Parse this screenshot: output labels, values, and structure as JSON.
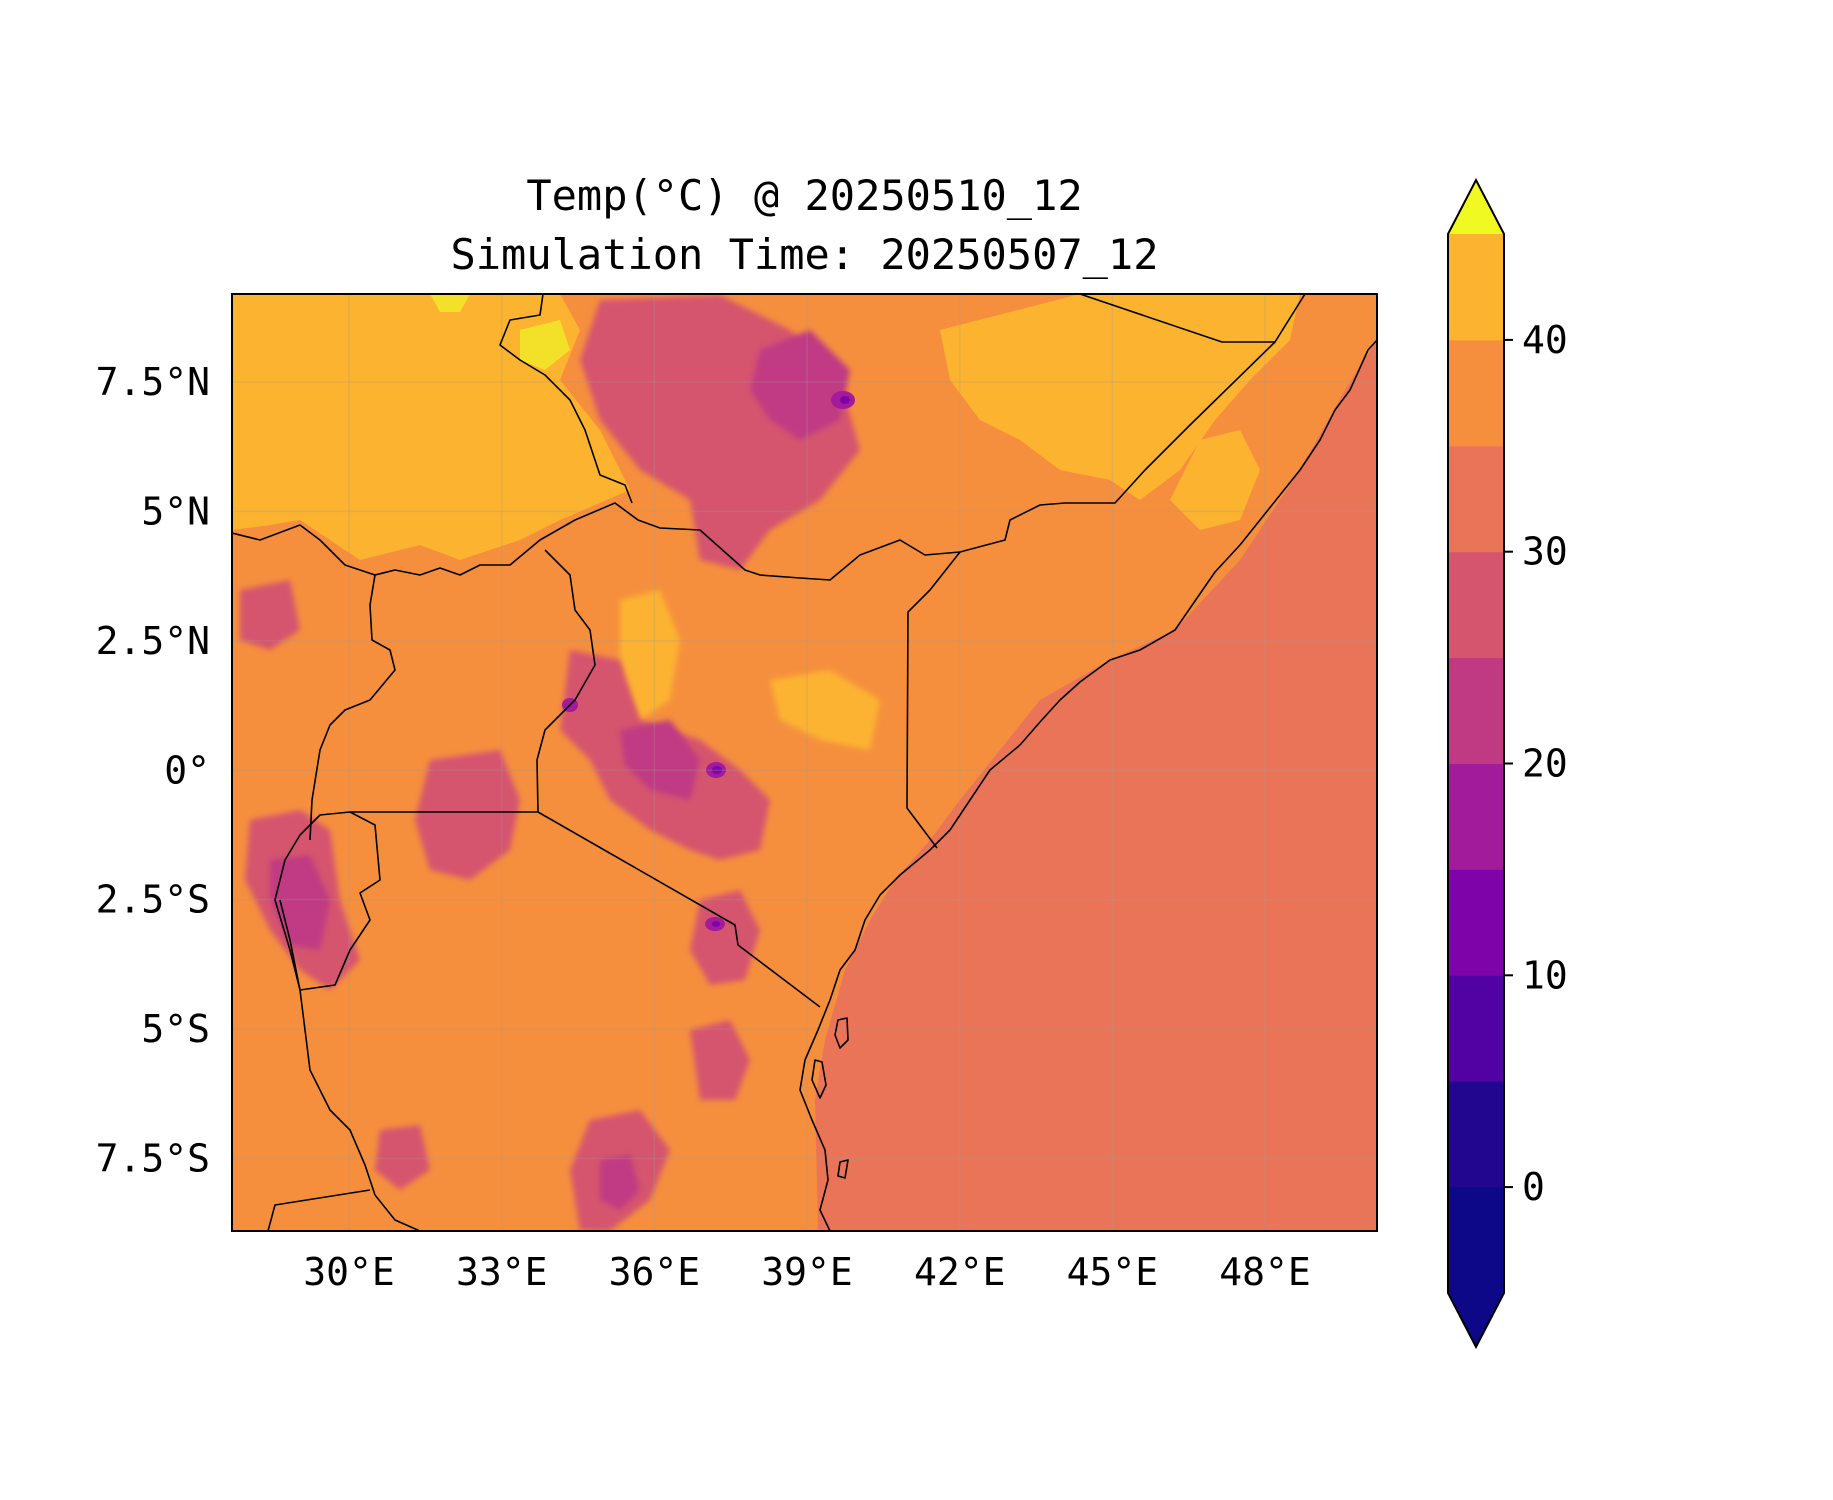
{
  "title_line1": "Temp(°C) @ 20250510_12",
  "title_line2": "Simulation Time: 20250507_12",
  "map": {
    "variable": "Temperature",
    "units": "°C",
    "lon_range": [
      27.7,
      50.2
    ],
    "lat_range": [
      -8.9,
      9.2
    ],
    "x_ticks": [
      {
        "value": 30,
        "label": "30°E"
      },
      {
        "value": 33,
        "label": "33°E"
      },
      {
        "value": 36,
        "label": "36°E"
      },
      {
        "value": 39,
        "label": "39°E"
      },
      {
        "value": 42,
        "label": "42°E"
      },
      {
        "value": 45,
        "label": "45°E"
      },
      {
        "value": 48,
        "label": "48°E"
      }
    ],
    "y_ticks": [
      {
        "value": 7.5,
        "label": "7.5°N"
      },
      {
        "value": 5,
        "label": "5°N"
      },
      {
        "value": 2.5,
        "label": "2.5°N"
      },
      {
        "value": 0,
        "label": "0°"
      },
      {
        "value": -2.5,
        "label": "2.5°S"
      },
      {
        "value": -5,
        "label": "5°S"
      },
      {
        "value": -7.5,
        "label": "7.5°S"
      }
    ],
    "grid": true,
    "colormap": "plasma"
  },
  "colorbar": {
    "levels": [
      -5,
      0,
      5,
      10,
      15,
      20,
      25,
      30,
      35,
      40,
      45
    ],
    "extend": "both",
    "ticks": [
      {
        "value": 0,
        "label": "0"
      },
      {
        "value": 10,
        "label": "10"
      },
      {
        "value": 20,
        "label": "20"
      },
      {
        "value": 30,
        "label": "30"
      },
      {
        "value": 40,
        "label": "40"
      }
    ],
    "colors": [
      "#0d0887",
      "#220690",
      "#5202a3",
      "#7e03a8",
      "#a11b9b",
      "#c03a83",
      "#d5546e",
      "#ea7457",
      "#f58f3e",
      "#fcb330",
      "#f3e028"
    ],
    "under_color": "#0d0887",
    "over_color": "#f0f921"
  }
}
